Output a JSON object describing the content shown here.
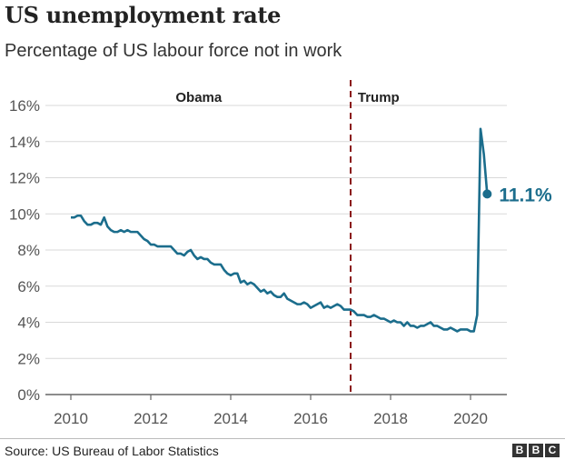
{
  "chart_data": {
    "type": "line",
    "title": "US unemployment rate",
    "subtitle": "Percentage of US labour force not in work",
    "xlabel": "",
    "ylabel": "",
    "ylim": [
      0,
      16
    ],
    "xlim": [
      2009.5,
      2021.0
    ],
    "y_ticks": [
      0,
      2,
      4,
      6,
      8,
      10,
      12,
      14,
      16
    ],
    "y_tick_labels": [
      "0%",
      "2%",
      "4%",
      "6%",
      "8%",
      "10%",
      "12%",
      "14%",
      "16%"
    ],
    "x_ticks": [
      2010,
      2012,
      2014,
      2016,
      2018,
      2020
    ],
    "x_tick_labels": [
      "2010",
      "2012",
      "2014",
      "2016",
      "2018",
      "2020"
    ],
    "grid": "horizontal",
    "series": [
      {
        "name": "Unemployment rate",
        "color": "#1b6d8c",
        "start": 2010,
        "frequency": "monthly",
        "values": [
          9.8,
          9.8,
          9.9,
          9.9,
          9.6,
          9.4,
          9.4,
          9.5,
          9.5,
          9.4,
          9.8,
          9.3,
          9.1,
          9.0,
          9.0,
          9.1,
          9.0,
          9.1,
          9.0,
          9.0,
          9.0,
          8.8,
          8.6,
          8.5,
          8.3,
          8.3,
          8.2,
          8.2,
          8.2,
          8.2,
          8.2,
          8.0,
          7.8,
          7.8,
          7.7,
          7.9,
          8.0,
          7.7,
          7.5,
          7.6,
          7.5,
          7.5,
          7.3,
          7.2,
          7.2,
          7.2,
          6.9,
          6.7,
          6.6,
          6.7,
          6.7,
          6.2,
          6.3,
          6.1,
          6.2,
          6.1,
          5.9,
          5.7,
          5.8,
          5.6,
          5.7,
          5.5,
          5.4,
          5.4,
          5.6,
          5.3,
          5.2,
          5.1,
          5.0,
          5.0,
          5.1,
          5.0,
          4.8,
          4.9,
          5.0,
          5.1,
          4.8,
          4.9,
          4.8,
          4.9,
          5.0,
          4.9,
          4.7,
          4.7,
          4.7,
          4.6,
          4.4,
          4.4,
          4.4,
          4.3,
          4.3,
          4.4,
          4.3,
          4.2,
          4.2,
          4.1,
          4.0,
          4.1,
          4.0,
          4.0,
          3.8,
          4.0,
          3.8,
          3.8,
          3.7,
          3.8,
          3.8,
          3.9,
          4.0,
          3.8,
          3.8,
          3.7,
          3.6,
          3.6,
          3.7,
          3.6,
          3.5,
          3.6,
          3.6,
          3.6,
          3.5,
          3.5,
          4.4,
          14.7,
          13.3,
          11.1
        ]
      }
    ],
    "last_value_label": "11.1%",
    "annotations": [
      {
        "text": "Obama",
        "x": 2013.2
      },
      {
        "text": "Trump",
        "x": 2017.7
      }
    ],
    "divider": {
      "x": 2017.0,
      "color": "#8b1a1a",
      "style": "dashed"
    },
    "legend": "none"
  },
  "footer": {
    "source": "Source: US Bureau of Labor Statistics",
    "logo_letters": [
      "B",
      "B",
      "C"
    ]
  }
}
